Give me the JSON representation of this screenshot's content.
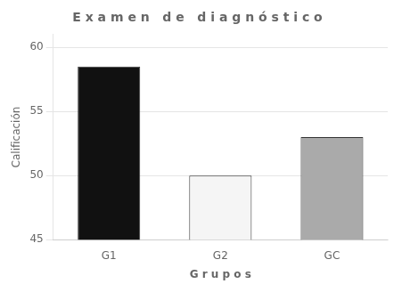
{
  "chart_data": {
    "type": "bar",
    "title": "E x a m e n   d e   d i a g n ó s t i c o",
    "xlabel": "G r u p o s",
    "ylabel": "Calificación",
    "categories": [
      "G1",
      "G2",
      "GC"
    ],
    "values": [
      58.5,
      50.0,
      53.0
    ],
    "colors": [
      "#111111",
      "#f5f5f5",
      "#aaaaaa"
    ],
    "ylim": [
      45,
      61
    ],
    "yticks": [
      45,
      50,
      55,
      60
    ],
    "grid": true
  }
}
